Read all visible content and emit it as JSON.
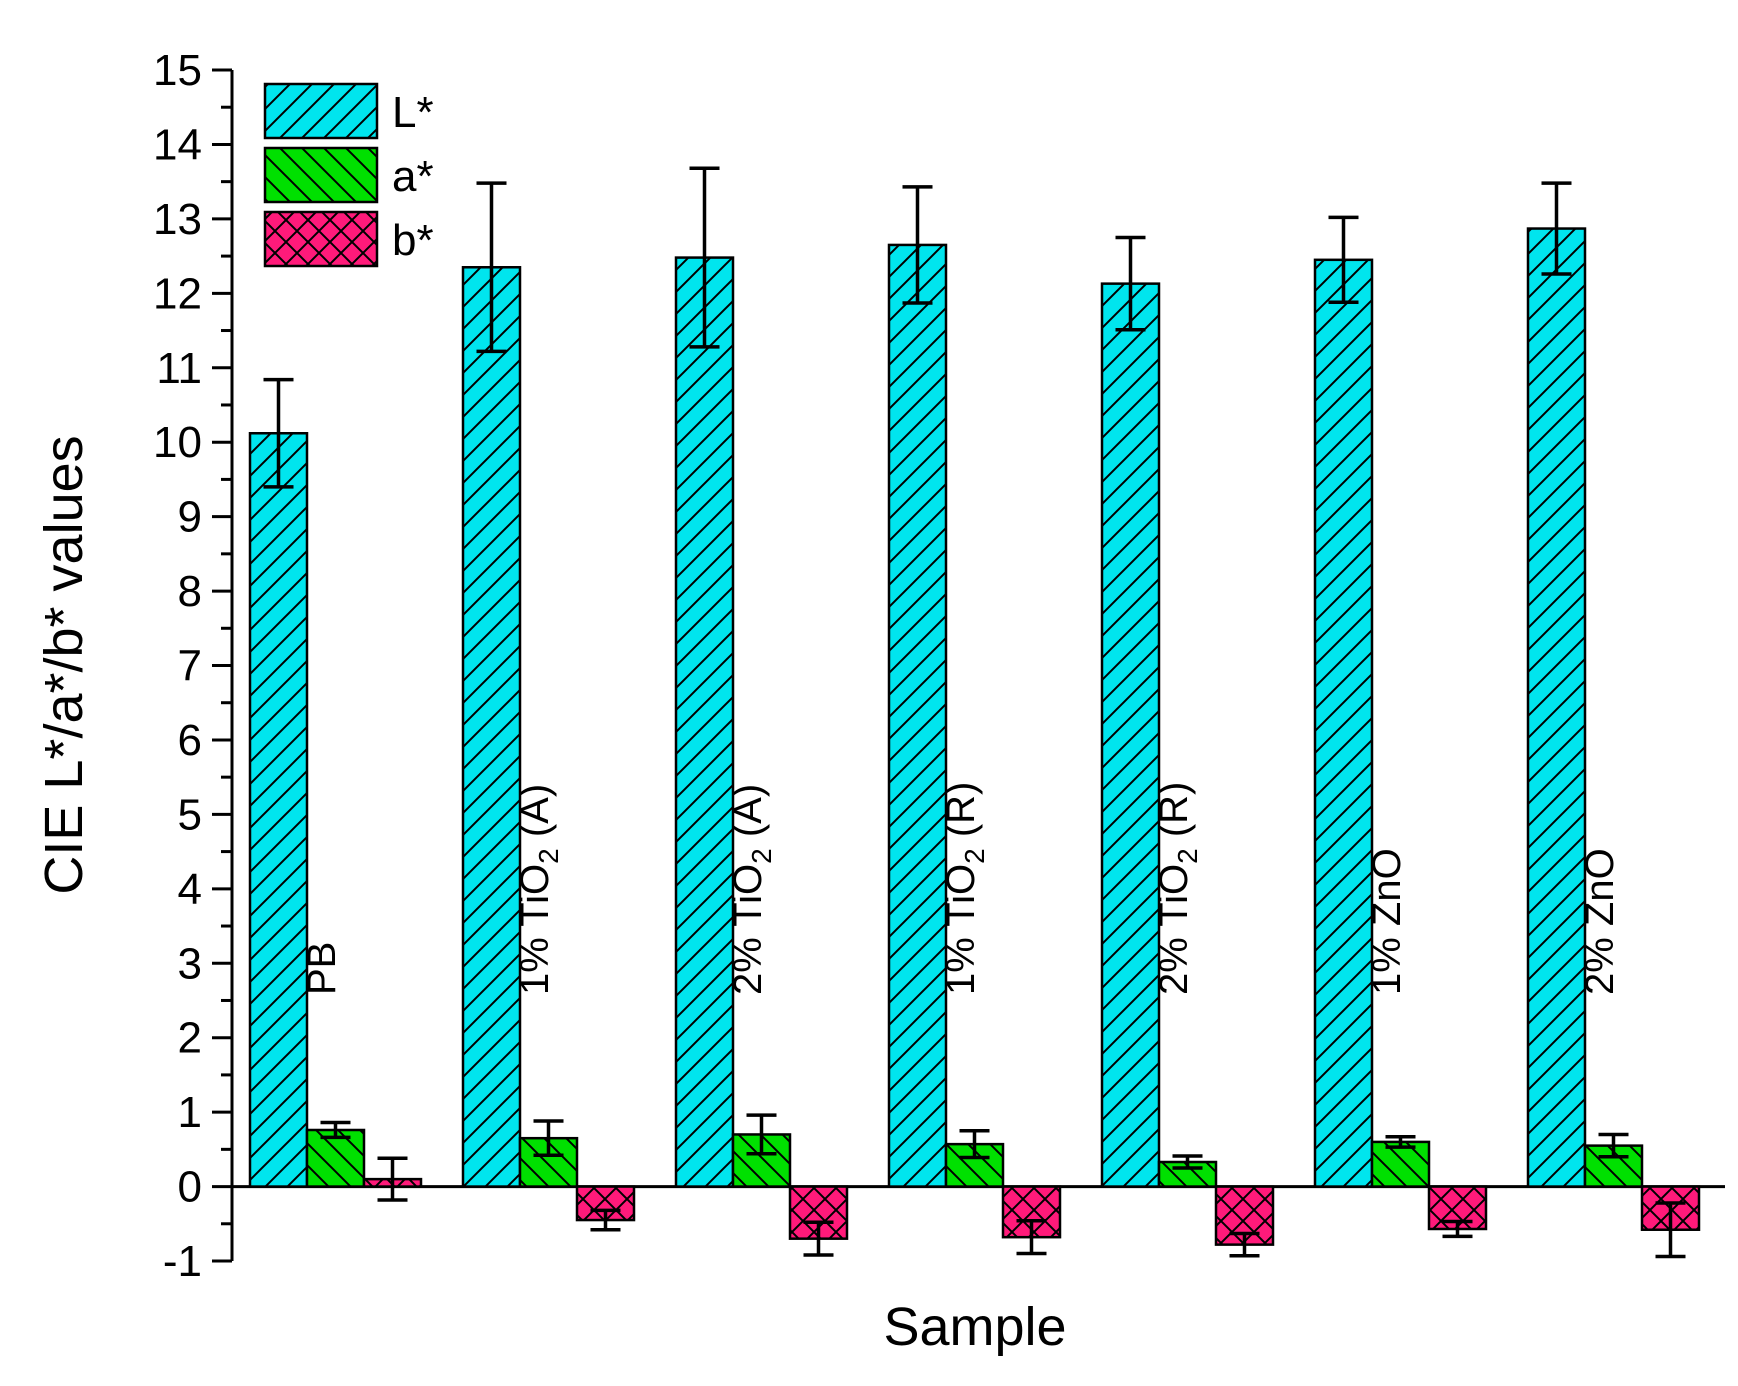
{
  "chart_data": {
    "type": "bar",
    "xlabel": "Sample",
    "ylabel": "CIE L*/a*/b* values",
    "ylim": [
      -1,
      15
    ],
    "yticks": [
      -1,
      0,
      1,
      2,
      3,
      4,
      5,
      6,
      7,
      8,
      9,
      10,
      11,
      12,
      13,
      14,
      15
    ],
    "grid": false,
    "legend_position": "top-left",
    "categories": [
      {
        "main": "PB",
        "sub": "",
        "suffix": ""
      },
      {
        "main": "1% TiO",
        "sub": "2",
        "suffix": " (A)"
      },
      {
        "main": "2% TiO",
        "sub": "2",
        "suffix": " (A)"
      },
      {
        "main": "1% TiO",
        "sub": "2",
        "suffix": " (R)"
      },
      {
        "main": "2% TiO",
        "sub": "2",
        "suffix": " (R)"
      },
      {
        "main": "1% ZnO",
        "sub": "",
        "suffix": ""
      },
      {
        "main": "2% ZnO",
        "sub": "",
        "suffix": ""
      }
    ],
    "series": [
      {
        "name": "L*",
        "color": "#00e5ee",
        "pattern": "diagonal-right",
        "values": [
          10.12,
          12.35,
          12.48,
          12.65,
          12.13,
          12.45,
          12.87
        ],
        "errors": [
          0.72,
          1.13,
          1.2,
          0.78,
          0.62,
          0.57,
          0.61
        ]
      },
      {
        "name": "a*",
        "color": "#00e000",
        "pattern": "diagonal-left",
        "values": [
          0.76,
          0.65,
          0.7,
          0.57,
          0.33,
          0.6,
          0.55
        ],
        "errors": [
          0.1,
          0.23,
          0.26,
          0.18,
          0.08,
          0.07,
          0.15
        ]
      },
      {
        "name": "b*",
        "color": "#ff1a7a",
        "pattern": "crosshatch",
        "values": [
          0.1,
          -0.45,
          -0.7,
          -0.68,
          -0.78,
          -0.57,
          -0.58
        ],
        "errors": [
          0.28,
          0.13,
          0.22,
          0.22,
          0.15,
          0.1,
          0.36
        ]
      }
    ]
  }
}
